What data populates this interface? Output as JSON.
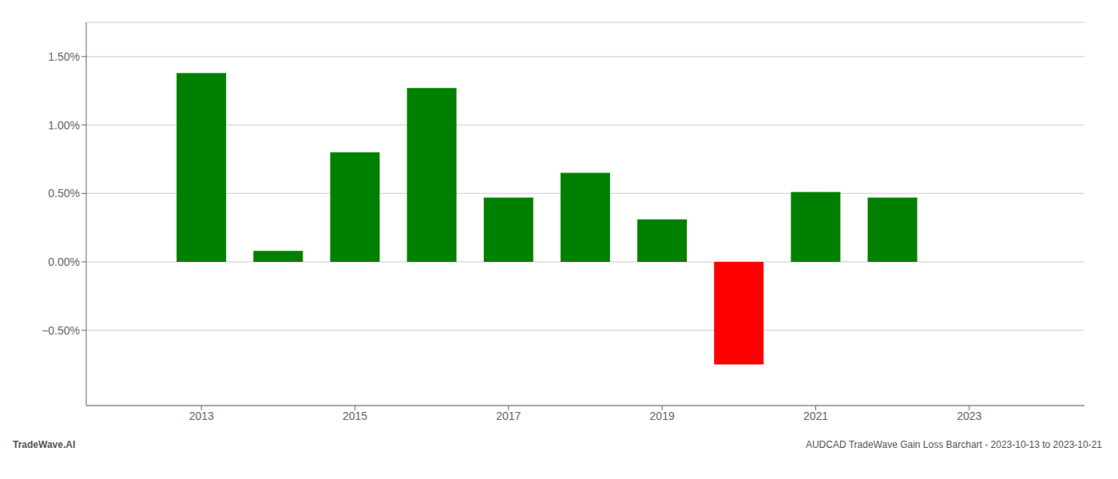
{
  "chart_data": {
    "type": "bar",
    "x": [
      2013,
      2014,
      2015,
      2016,
      2017,
      2018,
      2019,
      2020,
      2021,
      2022
    ],
    "values": [
      1.38,
      0.08,
      0.8,
      1.27,
      0.47,
      0.65,
      0.31,
      -0.75,
      0.51,
      0.47
    ],
    "colors": [
      "#008000",
      "#008000",
      "#008000",
      "#008000",
      "#008000",
      "#008000",
      "#008000",
      "#ff0000",
      "#008000",
      "#008000"
    ],
    "xlim": [
      2011.5,
      2024.5
    ],
    "xticks": [
      2013,
      2015,
      2017,
      2019,
      2021,
      2023
    ],
    "ylim": [
      -1.05,
      1.75
    ],
    "yticks": [
      {
        "value": -0.5,
        "label": "−0.50%"
      },
      {
        "value": 0.0,
        "label": "0.00%"
      },
      {
        "value": 0.5,
        "label": "0.50%"
      },
      {
        "value": 1.0,
        "label": "1.00%"
      },
      {
        "value": 1.5,
        "label": "1.50%"
      }
    ],
    "grid": true,
    "annotations": [
      "TradeWave.AI",
      "AUDCAD TradeWave Gain Loss Barchart - 2023-10-13 to 2023-10-21"
    ]
  }
}
